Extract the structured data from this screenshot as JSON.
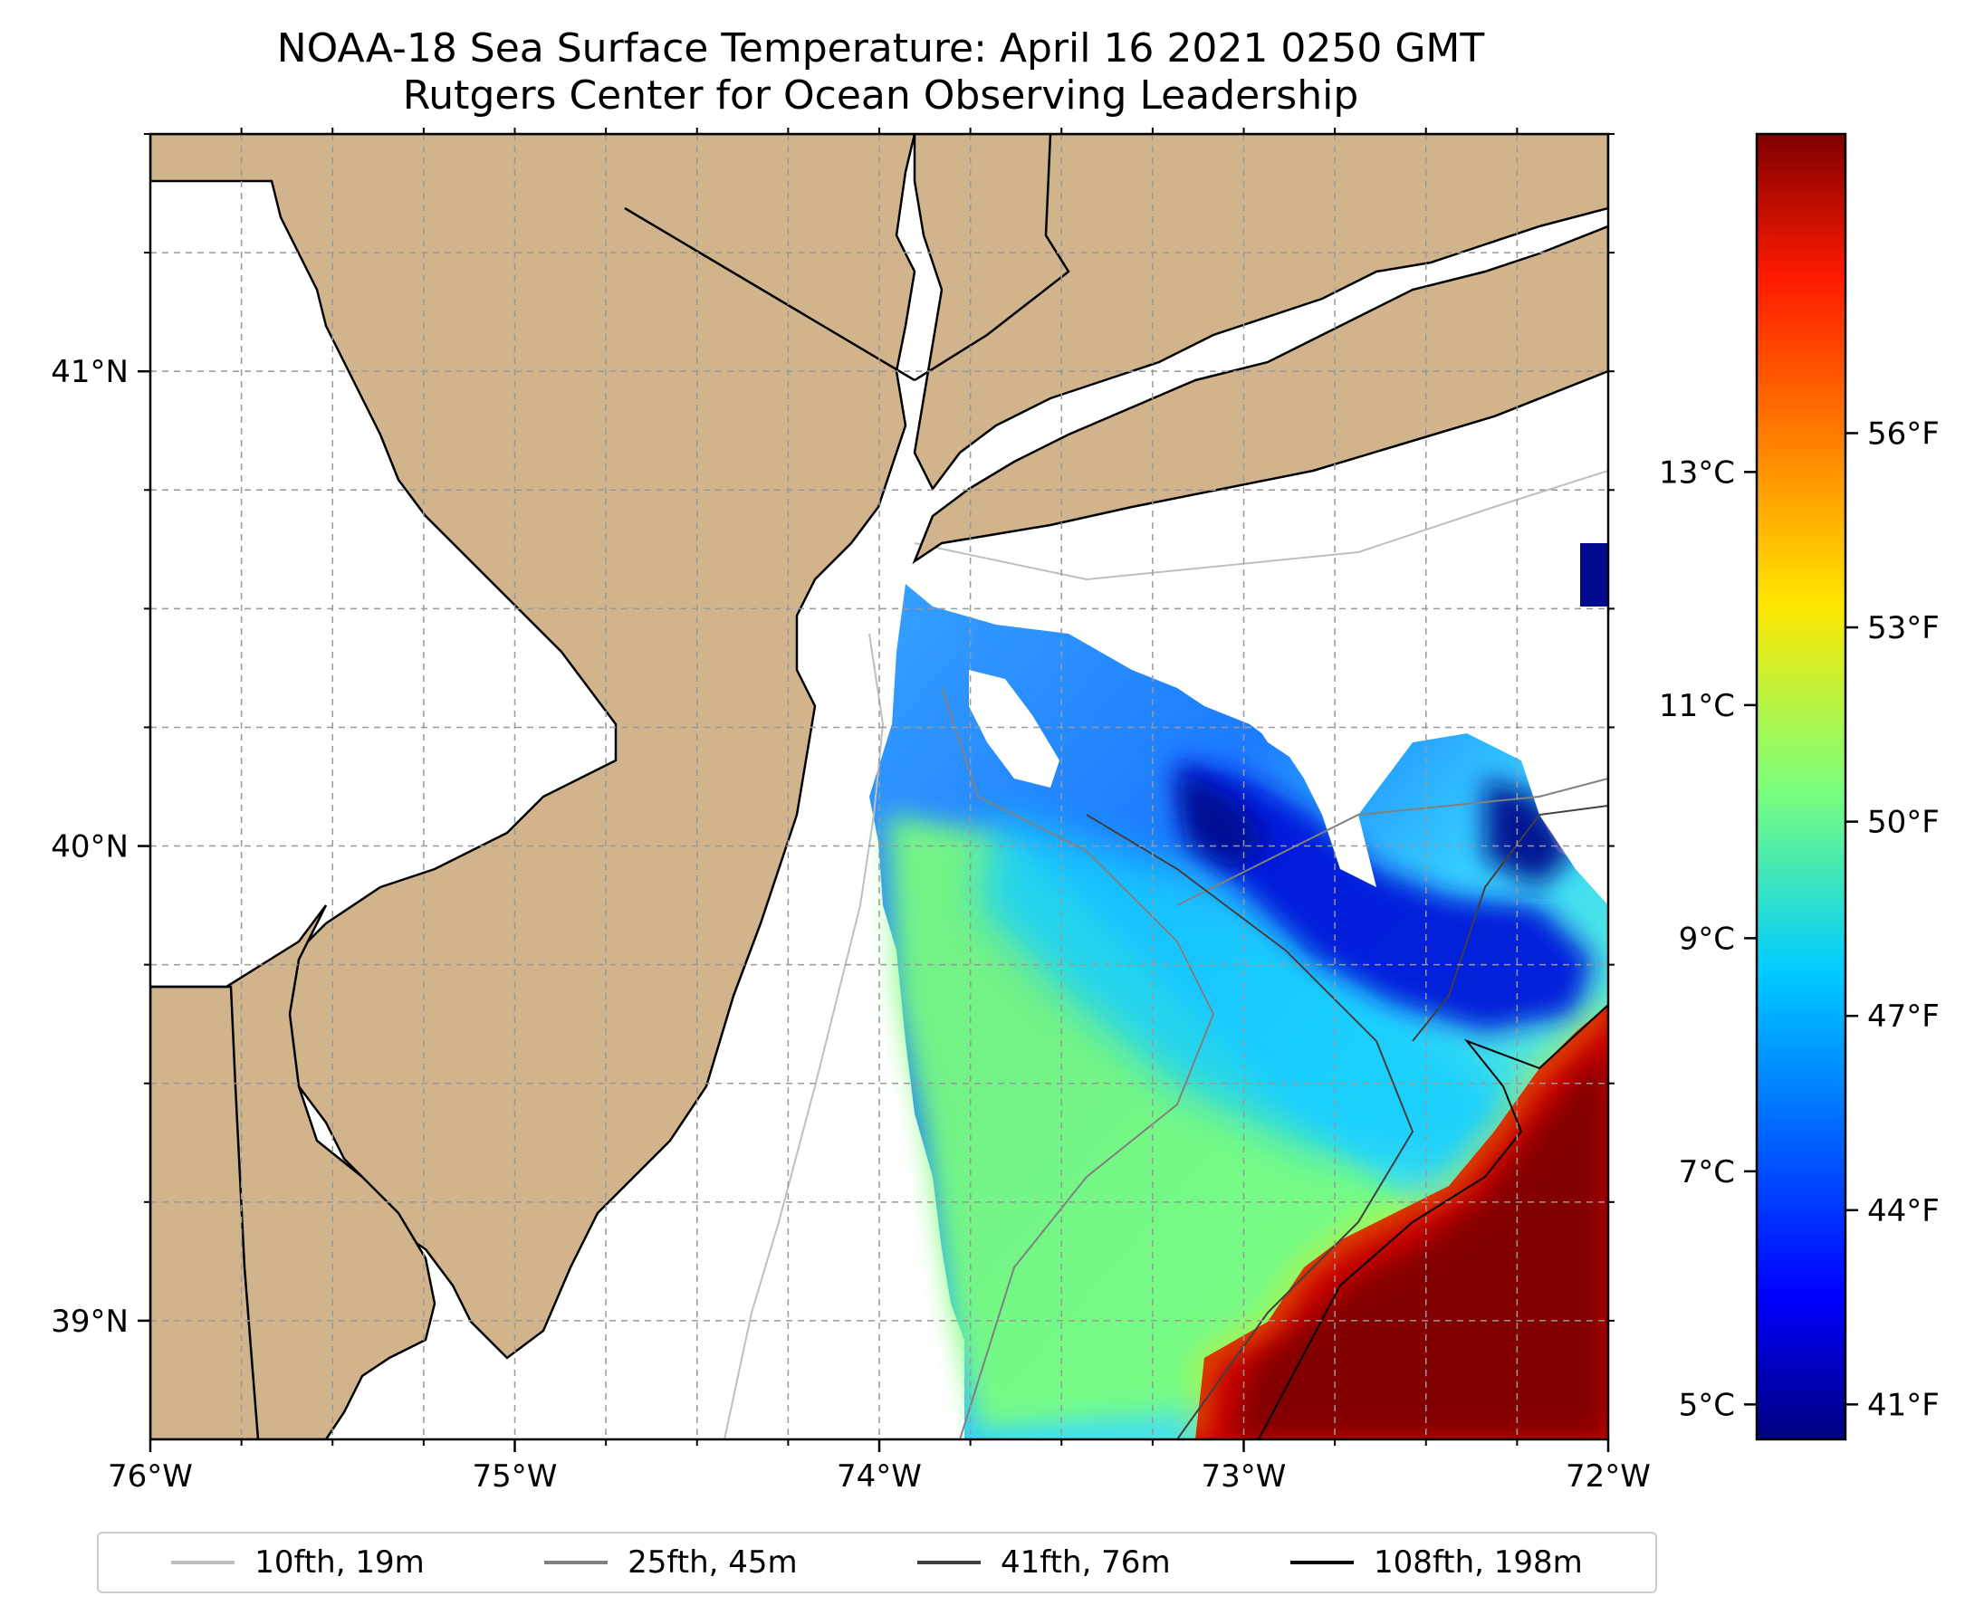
{
  "title": {
    "line1": "NOAA-18 Sea Surface Temperature: April 16 2021 0250 GMT",
    "line2": "Rutgers Center for Ocean Observing Leadership"
  },
  "map": {
    "lon_range": [
      -76,
      -72
    ],
    "lat_range": [
      38.75,
      41.5
    ],
    "lon_ticks": [
      {
        "value": -76,
        "label": "76°W"
      },
      {
        "value": -75,
        "label": "75°W"
      },
      {
        "value": -74,
        "label": "74°W"
      },
      {
        "value": -73,
        "label": "73°W"
      },
      {
        "value": -72,
        "label": "72°W"
      }
    ],
    "lat_ticks": [
      {
        "value": 39,
        "label": "39°N"
      },
      {
        "value": 40,
        "label": "40°N"
      },
      {
        "value": 41,
        "label": "41°N"
      }
    ],
    "gridlines": "dashed",
    "land_color": "#d2b48c",
    "water_color": "#ffffff"
  },
  "colorbar": {
    "colormap": "jet",
    "celsius_range": [
      4.7,
      15.9
    ],
    "celsius_ticks": [
      {
        "value": 5,
        "label": "5°C"
      },
      {
        "value": 7,
        "label": "7°C"
      },
      {
        "value": 9,
        "label": "9°C"
      },
      {
        "value": 11,
        "label": "11°C"
      },
      {
        "value": 13,
        "label": "13°C"
      }
    ],
    "fahrenheit_ticks": [
      {
        "value": 41,
        "label": "41°F"
      },
      {
        "value": 44,
        "label": "44°F"
      },
      {
        "value": 47,
        "label": "47°F"
      },
      {
        "value": 50,
        "label": "50°F"
      },
      {
        "value": 53,
        "label": "53°F"
      },
      {
        "value": 56,
        "label": "56°F"
      }
    ]
  },
  "legend": {
    "placement": "bottom",
    "items": [
      {
        "label": "10fth, 19m",
        "color": "#bfbfbf"
      },
      {
        "label": "25fth, 45m",
        "color": "#808080"
      },
      {
        "label": "41fth, 76m",
        "color": "#404040"
      },
      {
        "label": "108fth, 198m",
        "color": "#000000"
      }
    ]
  }
}
